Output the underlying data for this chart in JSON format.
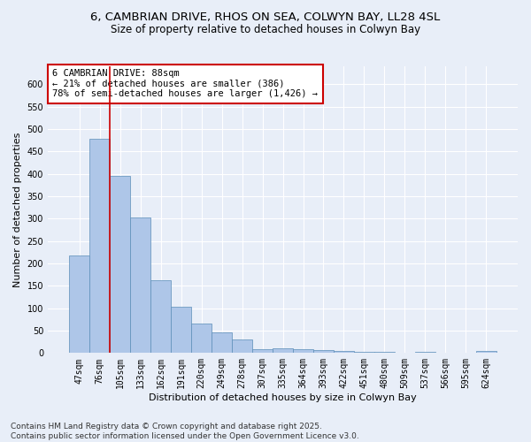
{
  "title_line1": "6, CAMBRIAN DRIVE, RHOS ON SEA, COLWYN BAY, LL28 4SL",
  "title_line2": "Size of property relative to detached houses in Colwyn Bay",
  "xlabel": "Distribution of detached houses by size in Colwyn Bay",
  "ylabel": "Number of detached properties",
  "categories": [
    "47sqm",
    "76sqm",
    "105sqm",
    "133sqm",
    "162sqm",
    "191sqm",
    "220sqm",
    "249sqm",
    "278sqm",
    "307sqm",
    "335sqm",
    "364sqm",
    "393sqm",
    "422sqm",
    "451sqm",
    "480sqm",
    "509sqm",
    "537sqm",
    "566sqm",
    "595sqm",
    "624sqm"
  ],
  "values": [
    218,
    478,
    395,
    302,
    163,
    104,
    65,
    47,
    30,
    9,
    10,
    9,
    7,
    5,
    3,
    2,
    0,
    2,
    0,
    0,
    4
  ],
  "bar_color": "#aec6e8",
  "bar_edge_color": "#5b8db8",
  "vline_color": "#cc0000",
  "annotation_text": "6 CAMBRIAN DRIVE: 88sqm\n← 21% of detached houses are smaller (386)\n78% of semi-detached houses are larger (1,426) →",
  "annotation_box_color": "#ffffff",
  "annotation_box_edge": "#cc0000",
  "ylim": [
    0,
    640
  ],
  "yticks": [
    0,
    50,
    100,
    150,
    200,
    250,
    300,
    350,
    400,
    450,
    500,
    550,
    600
  ],
  "background_color": "#e8eef8",
  "grid_color": "#ffffff",
  "footer_text": "Contains HM Land Registry data © Crown copyright and database right 2025.\nContains public sector information licensed under the Open Government Licence v3.0.",
  "title_fontsize": 9.5,
  "subtitle_fontsize": 8.5,
  "axis_label_fontsize": 8,
  "tick_fontsize": 7,
  "annotation_fontsize": 7.5,
  "footer_fontsize": 6.5
}
